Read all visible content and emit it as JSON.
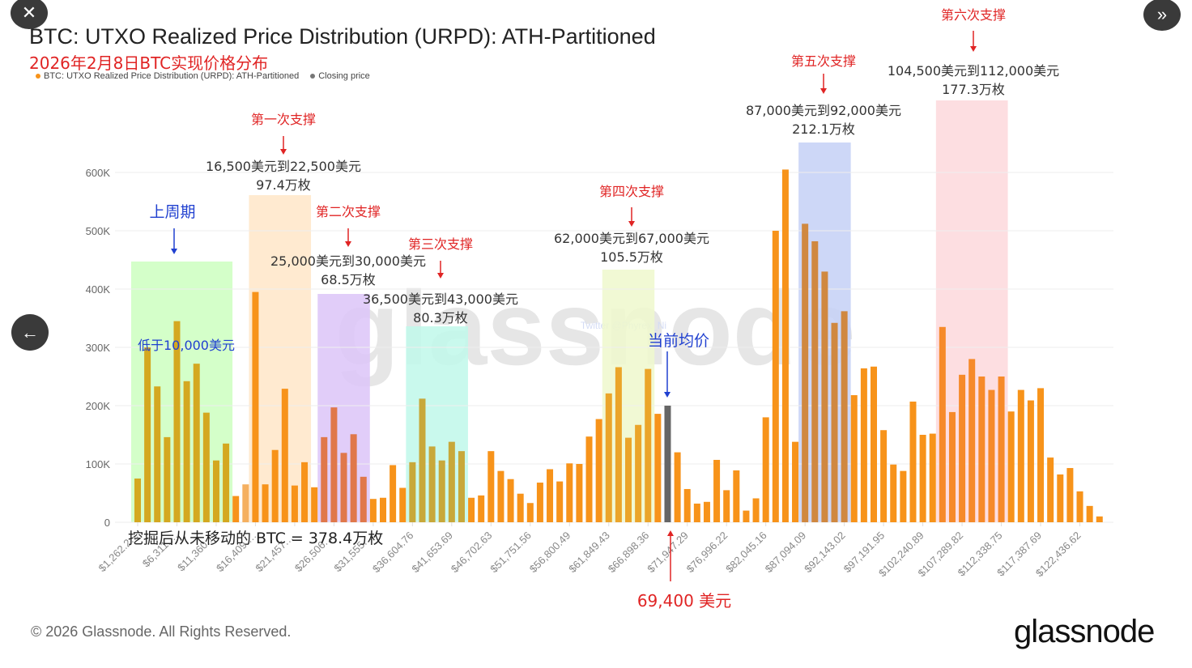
{
  "ui": {
    "close_icon": "close-icon",
    "next_icon": "double-chevron-right-icon",
    "back_icon": "arrow-left-icon",
    "close_glyph": "✕",
    "next_glyph": "»",
    "back_glyph": "←"
  },
  "footer": {
    "copyright": "© 2026 Glassnode. All Rights Reserved.",
    "logo": "glassnode"
  },
  "watermark": {
    "main": "glassnode",
    "twitter": "Twitter @Phyrex_Ni"
  },
  "colors": {
    "bar": "#f7931a",
    "closing": "#666666",
    "annotation_red": "#e02424",
    "annotation_blue": "#2040d0",
    "grid": "#eeeeee"
  },
  "chart_data": {
    "type": "bar",
    "title": "BTC: UTXO Realized Price Distribution (URPD): ATH-Partitioned",
    "subtitle": "2026年2月8日BTC实现价格分布",
    "legend": [
      {
        "label": "BTC: UTXO Realized Price Distribution (URPD): ATH-Partitioned",
        "color": "#f7931a"
      },
      {
        "label": "Closing price",
        "color": "#777777"
      }
    ],
    "legend_position": "top-left",
    "xlabel": "",
    "ylabel": "",
    "ylim": [
      0,
      600000
    ],
    "yticks": [
      0,
      100000,
      200000,
      300000,
      400000,
      500000,
      600000
    ],
    "ytick_labels": [
      "0",
      "100K",
      "200K",
      "300K",
      "400K",
      "500K",
      "600K"
    ],
    "xtick_labels": [
      "$1,262.2…",
      "$6,311.…",
      "$11,360.…",
      "$16,409.…",
      "$21,457.…",
      "$26,506.…",
      "$31,555.…",
      "$36,604.76",
      "$41,653.69",
      "$46,702.63",
      "$51,751.56",
      "$56,800.49",
      "$61,849.43",
      "$66,898.36",
      "$71,947.29",
      "$76,996.22",
      "$82,045.16",
      "$87,094.09",
      "$92,143.02",
      "$97,191.95",
      "$102,240.89",
      "$107,289.82",
      "$112,338.75",
      "$117,387.69",
      "$122,436.62"
    ],
    "xtick_every": 4,
    "grid": true,
    "series": [
      {
        "name": "BTC: UTXO Realized Price Distribution (URPD): ATH-Partitioned",
        "values": [
          75000,
          300000,
          233000,
          146000,
          345000,
          242000,
          272000,
          188000,
          106000,
          135000,
          45000,
          65000,
          395000,
          65000,
          124000,
          229000,
          63000,
          103000,
          60000,
          146000,
          197000,
          119000,
          151000,
          78000,
          40000,
          42000,
          98000,
          59000,
          103000,
          212000,
          130000,
          106000,
          138000,
          122000,
          42000,
          46000,
          122000,
          88000,
          74000,
          49000,
          33000,
          68000,
          91000,
          70000,
          101000,
          100000,
          147000,
          177000,
          221000,
          266000,
          145000,
          167000,
          263000,
          186000,
          200000,
          120000,
          57000,
          32000,
          35000,
          107000,
          55000,
          89000,
          20000,
          41000,
          180000,
          500000,
          605000,
          138000,
          512000,
          482000,
          430000,
          342000,
          362000,
          218000,
          264000,
          267000,
          158000,
          99000,
          88000,
          207000,
          150000,
          152000,
          335000,
          189000,
          253000,
          280000,
          250000,
          227000,
          250000,
          190000,
          227000,
          209000,
          230000,
          111000,
          82000,
          93000,
          53000,
          28000,
          10000
        ]
      }
    ],
    "closing_price_index": 54,
    "zones": [
      {
        "name": "previous-cycle",
        "from": 0,
        "to": 9,
        "color": "#ccffc0",
        "bar_color": "#d4a820",
        "label": "上周期",
        "sublabel": "低于10,000美元",
        "label_color": "#2040d0"
      },
      {
        "name": "support-1",
        "from": 12,
        "to": 17,
        "color": "#ffe6c8",
        "bar_color": "#f7931a",
        "label": "第一次支撑",
        "range": "16,500美元到22,500美元",
        "amount": "97.4万枚"
      },
      {
        "name": "support-2",
        "from": 19,
        "to": 23,
        "color": "#dcc4f8",
        "bar_color": "#e0784a",
        "label": "第二次支撑",
        "range": "25,000美元到30,000美元",
        "amount": "68.5万枚"
      },
      {
        "name": "support-3",
        "from": 28,
        "to": 33,
        "color": "#bff8ea",
        "bar_color": "#c8a83a",
        "label": "第三次支撑",
        "range": "36,500美元到43,000美元",
        "amount": "80.3万枚"
      },
      {
        "name": "support-4",
        "from": 48,
        "to": 52,
        "color": "#eef8cc",
        "bar_color": "#eba52a",
        "label": "第四次支撑",
        "range": "62,000美元到67,000美元",
        "amount": "105.5万枚"
      },
      {
        "name": "support-5",
        "from": 68,
        "to": 72,
        "color": "#c4d0f6",
        "bar_color": "#d08840",
        "label": "第五次支撑",
        "range": "87,000美元到92,000美元",
        "amount": "212.1万枚"
      },
      {
        "name": "support-6",
        "from": 82,
        "to": 88,
        "color": "#fdd8dc",
        "bar_color": "#f68a2a",
        "label": "第六次支撑",
        "range": "104,500美元到112,000美元",
        "amount": "177.3万枚"
      }
    ],
    "annotations": {
      "current_avg_label": "当前均价",
      "current_price_label": "69,400 美元",
      "never_moved_label": "挖掘后从未移动的 BTC = 378.4万枚"
    }
  }
}
